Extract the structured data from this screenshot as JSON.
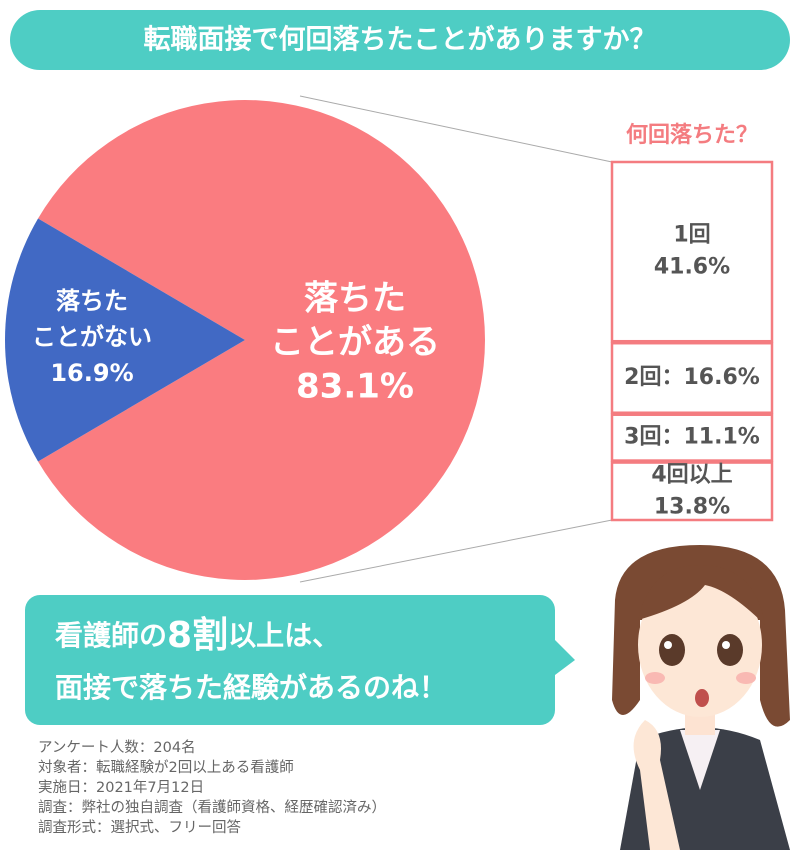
{
  "chart_data": {
    "type": "pie",
    "title": "転職面接で何回落ちたことがありますか？",
    "categories": [
      [
        "落ちた",
        "ことがある"
      ],
      [
        "落ちた",
        "ことがない"
      ]
    ],
    "values": [
      83.1,
      16.9
    ],
    "value_labels": [
      "83.1%",
      "16.9%"
    ],
    "colors": [
      "#fa7c80",
      "#4169c4"
    ],
    "breakdown": {
      "title": "何回落ちた？",
      "categories": [
        "1回",
        "2回",
        "3回",
        "4回以上"
      ],
      "values": [
        41.6,
        16.6,
        11.1,
        13.8
      ],
      "value_labels": [
        "41.6%",
        "16.6%",
        "11.1%",
        "13.8%"
      ],
      "separator": "：",
      "color": "#f47c80"
    },
    "callout": {
      "line1": [
        "看護師の",
        "8割",
        "以上は、"
      ],
      "line2": "面接で落ちた経験があるのね！"
    },
    "notes": [
      "アンケート人数：204名",
      "対象者：転職経験が2回以上ある看護師",
      "実施日：2021年7月12日",
      "調査：弊社の独自調査（看護師資格、経歴確認済み）",
      "調査形式：選択式、フリー回答"
    ]
  }
}
